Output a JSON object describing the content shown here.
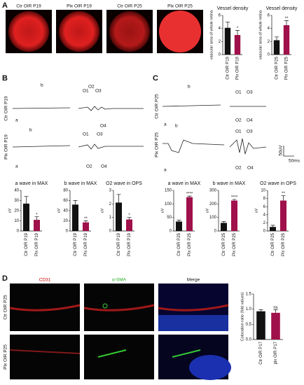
{
  "panels": [
    "A",
    "B",
    "C",
    "D"
  ],
  "retina_labels": [
    "Ctr OIR P19",
    "Plx OIR P19",
    "Ctr OIR P25",
    "Plx OIR P25"
  ],
  "traces_b": {
    "rows": [
      "Ctr OIR P19",
      "Plx OIR P19"
    ],
    "marks": [
      "a",
      "b",
      "O1",
      "O2",
      "O3",
      "O4"
    ]
  },
  "traces_c": {
    "rows": [
      "Ctr OIR P25",
      "Plx OIR P25"
    ],
    "scale_v": "50uV",
    "scale_t": "50ms"
  },
  "stain": {
    "columns": [
      "CD31",
      "α-SMA",
      "Merge"
    ],
    "rows": [
      "Ctr OIR P25",
      "Plx OIR P25"
    ]
  },
  "chart_data": [
    {
      "type": "bar",
      "title": "Vessel density",
      "ylabel": "vascular area of whole retina",
      "categories": [
        "Ctr OIR P19",
        "Plx OIR P19"
      ],
      "values": [
        4.1,
        3.0
      ],
      "errors": [
        0.9,
        0.7
      ],
      "colors": [
        "#111111",
        "#a0104a"
      ],
      "ylim": [
        0,
        6
      ],
      "yticks": [
        0,
        2,
        4,
        6
      ],
      "annotation": "*"
    },
    {
      "type": "bar",
      "title": "Vessel density",
      "ylabel": "vascular area of whole retina",
      "categories": [
        "Ctr OIR P25",
        "Plx OIR P25"
      ],
      "values": [
        2.2,
        4.5
      ],
      "errors": [
        0.5,
        0.7
      ],
      "colors": [
        "#111111",
        "#a0104a"
      ],
      "ylim": [
        0,
        6
      ],
      "yticks": [
        0,
        2,
        4,
        6
      ],
      "annotation": "**"
    },
    {
      "type": "bar",
      "title": "a wave in MAX",
      "ylabel": "uV",
      "categories": [
        "Ctr OIR P19",
        "Plx OIR P19"
      ],
      "values": [
        27,
        11
      ],
      "errors": [
        7,
        3
      ],
      "colors": [
        "#111111",
        "#a0104a"
      ],
      "ylim": [
        0,
        40
      ],
      "yticks": [
        0,
        10,
        20,
        30,
        40
      ],
      "annotation": "*"
    },
    {
      "type": "bar",
      "title": "b wave in MAX",
      "ylabel": "uV",
      "categories": [
        "Ctr OIR P19",
        "Plx OIR P19"
      ],
      "values": [
        52,
        17
      ],
      "errors": [
        8,
        3
      ],
      "colors": [
        "#111111",
        "#a0104a"
      ],
      "ylim": [
        0,
        80
      ],
      "yticks": [
        0,
        20,
        40,
        60,
        80
      ],
      "annotation": "**"
    },
    {
      "type": "bar",
      "title": "O2 wave in OPS",
      "ylabel": "uV",
      "categories": [
        "Ctr OIR P19",
        "Plx OIR P19"
      ],
      "values": [
        2.1,
        0.85
      ],
      "errors": [
        0.6,
        0.15
      ],
      "colors": [
        "#111111",
        "#a0104a"
      ],
      "ylim": [
        0,
        3
      ],
      "yticks": [
        0,
        1,
        2,
        3
      ],
      "annotation": "*"
    },
    {
      "type": "bar",
      "title": "a wave in MAX",
      "ylabel": "uV",
      "categories": [
        "Ctr OIR P25",
        "Plx OIR P25"
      ],
      "values": [
        35,
        125
      ],
      "errors": [
        5,
        4
      ],
      "colors": [
        "#111111",
        "#a0104a"
      ],
      "ylim": [
        0,
        150
      ],
      "yticks": [
        0,
        50,
        100,
        150
      ],
      "annotation": "****"
    },
    {
      "type": "bar",
      "title": "b wave in MAX",
      "ylabel": "uV",
      "categories": [
        "Ctr OIR P25",
        "Plx OIR P25"
      ],
      "values": [
        60,
        225
      ],
      "errors": [
        10,
        8
      ],
      "colors": [
        "#111111",
        "#a0104a"
      ],
      "ylim": [
        0,
        300
      ],
      "yticks": [
        0,
        100,
        200,
        300
      ],
      "annotation": "****"
    },
    {
      "type": "bar",
      "title": "O2 wave in OPS",
      "ylabel": "uV",
      "categories": [
        "Ctr OIR P25",
        "Plx OIR P25"
      ],
      "values": [
        1,
        7.5
      ],
      "errors": [
        0.4,
        1.2
      ],
      "colors": [
        "#111111",
        "#a0104a"
      ],
      "ylim": [
        0,
        10
      ],
      "yticks": [
        0,
        2,
        4,
        6,
        8,
        10
      ],
      "annotation": "**"
    },
    {
      "type": "bar",
      "ylabel": "Colocation ratio (fold values)",
      "categories": [
        "Ctr OIR P17",
        "plx OIR P17"
      ],
      "values": [
        0.93,
        0.88
      ],
      "errors": [
        0.05,
        0.1
      ],
      "colors": [
        "#111111",
        "#a0104a"
      ],
      "ylim": [
        0,
        1.5
      ],
      "yticks": [
        {
          "value": 0,
          "label": "0.0"
        },
        {
          "value": 0.5,
          "label": "0.5"
        },
        {
          "value": 1,
          "label": "1.0"
        },
        {
          "value": 1.5,
          "label": "1.5"
        }
      ],
      "annotation": "ns"
    }
  ]
}
